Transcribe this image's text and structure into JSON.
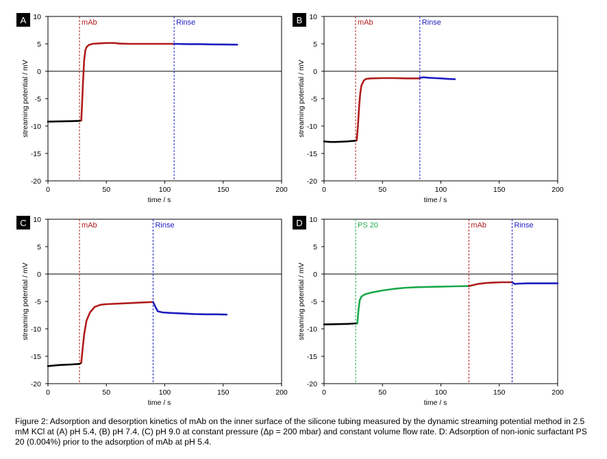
{
  "colors": {
    "baseline": "#000000",
    "mAb": "#b01c1c",
    "Rinse": "#1c1cc0",
    "PS 20": "#1aa84a",
    "zero_line": "#000000",
    "frame": "#000000"
  },
  "chart_data": [
    {
      "type": "line",
      "panel": "A",
      "xlabel": "time / s",
      "ylabel": "streaming potential / mV",
      "xlim": [
        0,
        200
      ],
      "ylim": [
        -20,
        10
      ],
      "xticks": [
        0,
        50,
        100,
        150,
        200
      ],
      "yticks": [
        -20,
        -15,
        -10,
        -5,
        0,
        5,
        10
      ],
      "grid": false,
      "markers": [
        {
          "x": 27,
          "label": "mAb",
          "color_key": "mAb"
        },
        {
          "x": 108,
          "label": "Rinse",
          "color_key": "Rinse"
        }
      ],
      "segments": [
        {
          "color_key": "baseline",
          "points": [
            [
              0,
              -9.2
            ],
            [
              10,
              -9.15
            ],
            [
              20,
              -9.1
            ],
            [
              27,
              -9.05
            ],
            [
              28.5,
              -9.0
            ]
          ]
        },
        {
          "color_key": "mAb",
          "points": [
            [
              28.5,
              -9.0
            ],
            [
              29,
              -7
            ],
            [
              30,
              -2
            ],
            [
              31,
              2
            ],
            [
              32,
              3.8
            ],
            [
              33,
              4.4
            ],
            [
              35,
              4.8
            ],
            [
              38,
              5.0
            ],
            [
              45,
              5.1
            ],
            [
              50,
              5.15
            ],
            [
              58,
              5.15
            ],
            [
              60,
              5.05
            ],
            [
              70,
              5.0
            ],
            [
              80,
              5.0
            ],
            [
              90,
              5.0
            ],
            [
              100,
              5.0
            ],
            [
              108,
              5.0
            ]
          ]
        },
        {
          "color_key": "Rinse",
          "points": [
            [
              108,
              5.0
            ],
            [
              120,
              4.95
            ],
            [
              130,
              4.95
            ],
            [
              140,
              4.9
            ],
            [
              150,
              4.88
            ],
            [
              162,
              4.85
            ]
          ]
        }
      ]
    },
    {
      "type": "line",
      "panel": "B",
      "xlabel": "time / s",
      "ylabel": "streaming potential / mV",
      "xlim": [
        0,
        200
      ],
      "ylim": [
        -20,
        10
      ],
      "xticks": [
        0,
        50,
        100,
        150,
        200
      ],
      "yticks": [
        -20,
        -15,
        -10,
        -5,
        0,
        5,
        10
      ],
      "grid": false,
      "markers": [
        {
          "x": 27,
          "label": "mAb",
          "color_key": "mAb"
        },
        {
          "x": 82,
          "label": "Rinse",
          "color_key": "Rinse"
        }
      ],
      "segments": [
        {
          "color_key": "baseline",
          "points": [
            [
              0,
              -12.8
            ],
            [
              5,
              -12.9
            ],
            [
              10,
              -12.9
            ],
            [
              20,
              -12.8
            ],
            [
              26,
              -12.7
            ],
            [
              28,
              -12.6
            ]
          ]
        },
        {
          "color_key": "mAb",
          "points": [
            [
              28,
              -12.6
            ],
            [
              29,
              -10
            ],
            [
              30,
              -6.5
            ],
            [
              31,
              -4
            ],
            [
              32,
              -2.6
            ],
            [
              34,
              -1.7
            ],
            [
              36,
              -1.4
            ],
            [
              40,
              -1.3
            ],
            [
              50,
              -1.25
            ],
            [
              60,
              -1.25
            ],
            [
              70,
              -1.3
            ],
            [
              82,
              -1.3
            ]
          ]
        },
        {
          "color_key": "Rinse",
          "points": [
            [
              82,
              -1.2
            ],
            [
              85,
              -1.1
            ],
            [
              90,
              -1.2
            ],
            [
              100,
              -1.3
            ],
            [
              106,
              -1.4
            ],
            [
              112,
              -1.45
            ]
          ]
        }
      ]
    },
    {
      "type": "line",
      "panel": "C",
      "xlabel": "time / s",
      "ylabel": "streaming potential / mV",
      "xlim": [
        0,
        200
      ],
      "ylim": [
        -20,
        10
      ],
      "xticks": [
        0,
        50,
        100,
        150,
        200
      ],
      "yticks": [
        -20,
        -15,
        -10,
        -5,
        0,
        5,
        10
      ],
      "grid": false,
      "markers": [
        {
          "x": 27,
          "label": "mAb",
          "color_key": "mAb"
        },
        {
          "x": 90,
          "label": "Rinse",
          "color_key": "Rinse"
        }
      ],
      "segments": [
        {
          "color_key": "baseline",
          "points": [
            [
              0,
              -16.8
            ],
            [
              5,
              -16.7
            ],
            [
              10,
              -16.6
            ],
            [
              20,
              -16.5
            ],
            [
              27,
              -16.4
            ],
            [
              28.5,
              -16.2
            ]
          ]
        },
        {
          "color_key": "mAb",
          "points": [
            [
              28.5,
              -16.2
            ],
            [
              29.5,
              -14
            ],
            [
              31,
              -11
            ],
            [
              33,
              -8.5
            ],
            [
              36,
              -7
            ],
            [
              40,
              -6
            ],
            [
              45,
              -5.6
            ],
            [
              50,
              -5.5
            ],
            [
              60,
              -5.4
            ],
            [
              70,
              -5.3
            ],
            [
              80,
              -5.2
            ],
            [
              90,
              -5.1
            ]
          ]
        },
        {
          "color_key": "Rinse",
          "points": [
            [
              90,
              -5.1
            ],
            [
              92,
              -6
            ],
            [
              94,
              -6.8
            ],
            [
              98,
              -7.0
            ],
            [
              105,
              -7.1
            ],
            [
              115,
              -7.2
            ],
            [
              125,
              -7.3
            ],
            [
              135,
              -7.35
            ],
            [
              145,
              -7.35
            ],
            [
              153,
              -7.4
            ]
          ]
        }
      ]
    },
    {
      "type": "line",
      "panel": "D",
      "xlabel": "time / s",
      "ylabel": "streaming potential / mV",
      "xlim": [
        0,
        200
      ],
      "ylim": [
        -20,
        10
      ],
      "xticks": [
        0,
        50,
        100,
        150,
        200
      ],
      "yticks": [
        -20,
        -15,
        -10,
        -5,
        0,
        5,
        10
      ],
      "grid": false,
      "markers": [
        {
          "x": 27,
          "label": "PS 20",
          "color_key": "PS 20"
        },
        {
          "x": 124,
          "label": "mAb",
          "color_key": "mAb"
        },
        {
          "x": 161,
          "label": "Rinse",
          "color_key": "Rinse"
        }
      ],
      "segments": [
        {
          "color_key": "baseline",
          "points": [
            [
              0,
              -9.2
            ],
            [
              10,
              -9.15
            ],
            [
              20,
              -9.1
            ],
            [
              28.5,
              -9.0
            ]
          ]
        },
        {
          "color_key": "PS 20",
          "points": [
            [
              28.5,
              -9.0
            ],
            [
              29.5,
              -6.5
            ],
            [
              30.5,
              -4.8
            ],
            [
              32,
              -4.1
            ],
            [
              35,
              -3.7
            ],
            [
              40,
              -3.4
            ],
            [
              50,
              -3.0
            ],
            [
              60,
              -2.7
            ],
            [
              70,
              -2.5
            ],
            [
              80,
              -2.4
            ],
            [
              90,
              -2.35
            ],
            [
              100,
              -2.3
            ],
            [
              110,
              -2.25
            ],
            [
              124,
              -2.2
            ]
          ]
        },
        {
          "color_key": "mAb",
          "points": [
            [
              124,
              -2.2
            ],
            [
              128,
              -2.0
            ],
            [
              132,
              -1.8
            ],
            [
              138,
              -1.65
            ],
            [
              145,
              -1.55
            ],
            [
              152,
              -1.5
            ],
            [
              161,
              -1.5
            ]
          ]
        },
        {
          "color_key": "Rinse",
          "points": [
            [
              161,
              -1.5
            ],
            [
              163,
              -1.8
            ],
            [
              167,
              -1.75
            ],
            [
              175,
              -1.7
            ],
            [
              185,
              -1.7
            ],
            [
              200,
              -1.7
            ]
          ]
        }
      ]
    }
  ],
  "caption": "Figure 2: Adsorption and desorption kinetics of mAb on the inner surface of the silicone tubing measured by the dynamic streaming potential method in 2.5 mM KCl at (A) pH 5.4, (B) pH 7.4, (C) pH 9.0 at constant pressure (Δp = 200 mbar) and constant volume flow rate. D: Adsorption of non-ionic surfactant PS 20 (0.004%) prior to the adsorption of mAb at pH 5.4."
}
